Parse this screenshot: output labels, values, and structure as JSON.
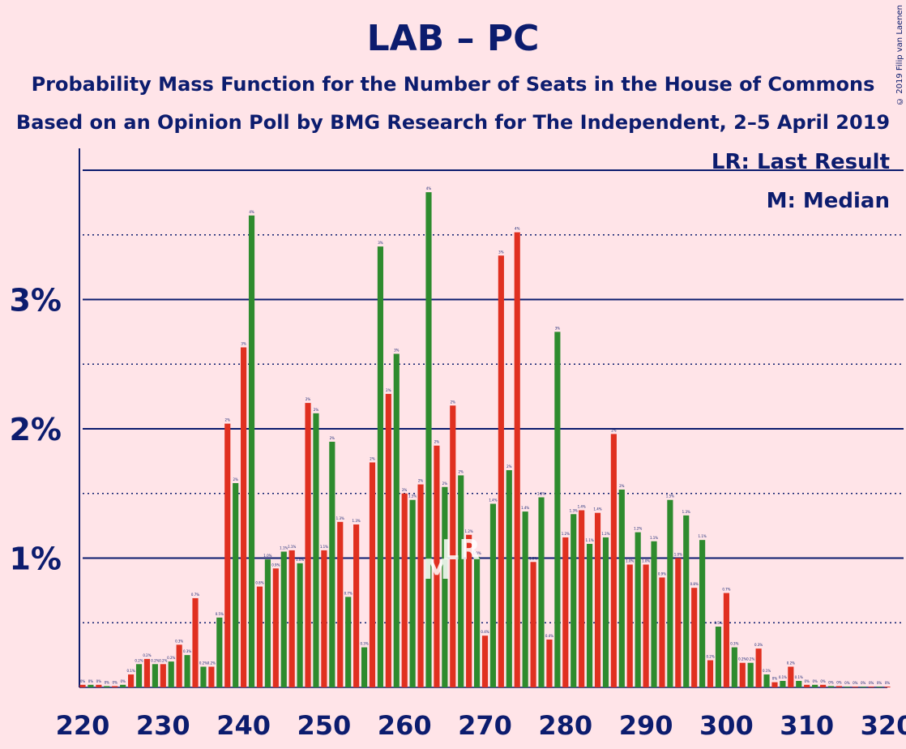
{
  "title": "LAB – PC",
  "subtitle1": "Probability Mass Function for the Number of Seats in the House of Commons",
  "subtitle2": "Based on an Opinion Poll by BMG Research for The Independent, 2–5 April 2019",
  "copyright": "© 2019 Filip van Laenen",
  "legend": {
    "last_result": "LR: Last Result",
    "median": "M: Median"
  },
  "colors": {
    "background": "#ffe4e8",
    "text": "#0c1c6e",
    "bar_odd": "#2e8b2e",
    "bar_even": "#e03020",
    "grid": "#0c1c6e"
  },
  "chart_data": {
    "type": "bar",
    "title": "LAB – PC",
    "xlabel": "",
    "ylabel": "",
    "xlim": [
      220,
      320
    ],
    "ylim": [
      0,
      4.2
    ],
    "xticks": [
      220,
      230,
      240,
      250,
      260,
      270,
      280,
      290,
      300,
      310,
      320
    ],
    "yticks": [
      {
        "value": 1,
        "label": "1%"
      },
      {
        "value": 2,
        "label": "2%"
      },
      {
        "value": 3,
        "label": "3%"
      }
    ],
    "grid": "dotted at 0.5% steps, solid at 1% steps",
    "markers": {
      "median": 264,
      "median_label": "M",
      "last_result": 267,
      "last_result_label": "LR"
    },
    "x": [
      220,
      221,
      222,
      223,
      224,
      225,
      226,
      227,
      228,
      229,
      230,
      231,
      232,
      233,
      234,
      235,
      236,
      237,
      238,
      239,
      240,
      241,
      242,
      243,
      244,
      245,
      246,
      247,
      248,
      249,
      250,
      251,
      252,
      253,
      254,
      255,
      256,
      257,
      258,
      259,
      260,
      261,
      262,
      263,
      264,
      265,
      266,
      267,
      268,
      269,
      270,
      271,
      272,
      273,
      274,
      275,
      276,
      277,
      278,
      279,
      280,
      281,
      282,
      283,
      284,
      285,
      286,
      287,
      288,
      289,
      290,
      291,
      292,
      293,
      294,
      295,
      296,
      297,
      298,
      299,
      300,
      301,
      302,
      303,
      304,
      305,
      306,
      307,
      308,
      309,
      310,
      311,
      312,
      313,
      314,
      315,
      316,
      317,
      318,
      319,
      320
    ],
    "values": [
      0.02,
      0.02,
      0.02,
      0.01,
      0.01,
      0.02,
      0.1,
      0.18,
      0.22,
      0.18,
      0.18,
      0.2,
      0.33,
      0.25,
      0.69,
      0.16,
      0.16,
      0.54,
      2.04,
      1.58,
      2.63,
      3.65,
      0.78,
      0.99,
      0.92,
      1.05,
      1.06,
      0.96,
      2.2,
      2.12,
      1.06,
      1.9,
      1.28,
      0.7,
      1.26,
      0.31,
      1.74,
      3.41,
      2.27,
      2.58,
      1.5,
      1.45,
      1.57,
      3.83,
      1.87,
      1.55,
      2.18,
      1.64,
      1.18,
      1.01,
      0.4,
      1.42,
      3.34,
      1.68,
      3.52,
      1.36,
      0.97,
      1.47,
      0.37,
      2.75,
      1.16,
      1.34,
      1.37,
      1.11,
      1.35,
      1.16,
      1.96,
      1.53,
      0.95,
      1.2,
      0.95,
      1.13,
      0.85,
      1.45,
      1.0,
      1.33,
      0.77,
      1.14,
      0.21,
      0.47,
      0.73,
      0.31,
      0.19,
      0.19,
      0.3,
      0.1,
      0.04,
      0.05,
      0.16,
      0.05,
      0.02,
      0.02,
      0.02,
      0.01,
      0.01,
      0.0,
      0.0,
      0.0,
      0.0,
      0.0,
      0.0
    ],
    "data_labels": [
      "0%",
      "0%",
      "0%",
      "0%",
      "0%",
      "0%",
      "0.1%",
      "0.2%",
      "0.2%",
      "0.2%",
      "0.2%",
      "0.2%",
      "0.3%",
      "0.3%",
      "0.7%",
      "0.2%",
      "0.2%",
      "0.5%",
      "2%",
      "2%",
      "3%",
      "4%",
      "0.8%",
      "1.0%",
      "0.9%",
      "1.1%",
      "1.1%",
      "1.0%",
      "2%",
      "2%",
      "1.1%",
      "2%",
      "1.3%",
      "0.7%",
      "1.3%",
      "0.3%",
      "2%",
      "3%",
      "2%",
      "3%",
      "2%",
      "1.5%",
      "2%",
      "4%",
      "2%",
      "2%",
      "2%",
      "2%",
      "1.2%",
      "1.0%",
      "0.4%",
      "1.4%",
      "3%",
      "2%",
      "4%",
      "1.4%",
      "1.0%",
      "1.5%",
      "0.4%",
      "3%",
      "1.2%",
      "1.3%",
      "1.4%",
      "1.1%",
      "1.4%",
      "1.2%",
      "2%",
      "2%",
      "1.0%",
      "1.2%",
      "1.0%",
      "1.1%",
      "0.9%",
      "1.5%",
      "1.0%",
      "1.3%",
      "0.8%",
      "1.1%",
      "0.2%",
      "0.5%",
      "0.7%",
      "0.3%",
      "0.2%",
      "0.2%",
      "0.3%",
      "0.1%",
      "0%",
      "0.1%",
      "0.2%",
      "0.1%",
      "0%",
      "0%",
      "0%",
      "0%",
      "0%",
      "0%",
      "0%",
      "0%",
      "0%",
      "0%",
      "0%"
    ]
  }
}
